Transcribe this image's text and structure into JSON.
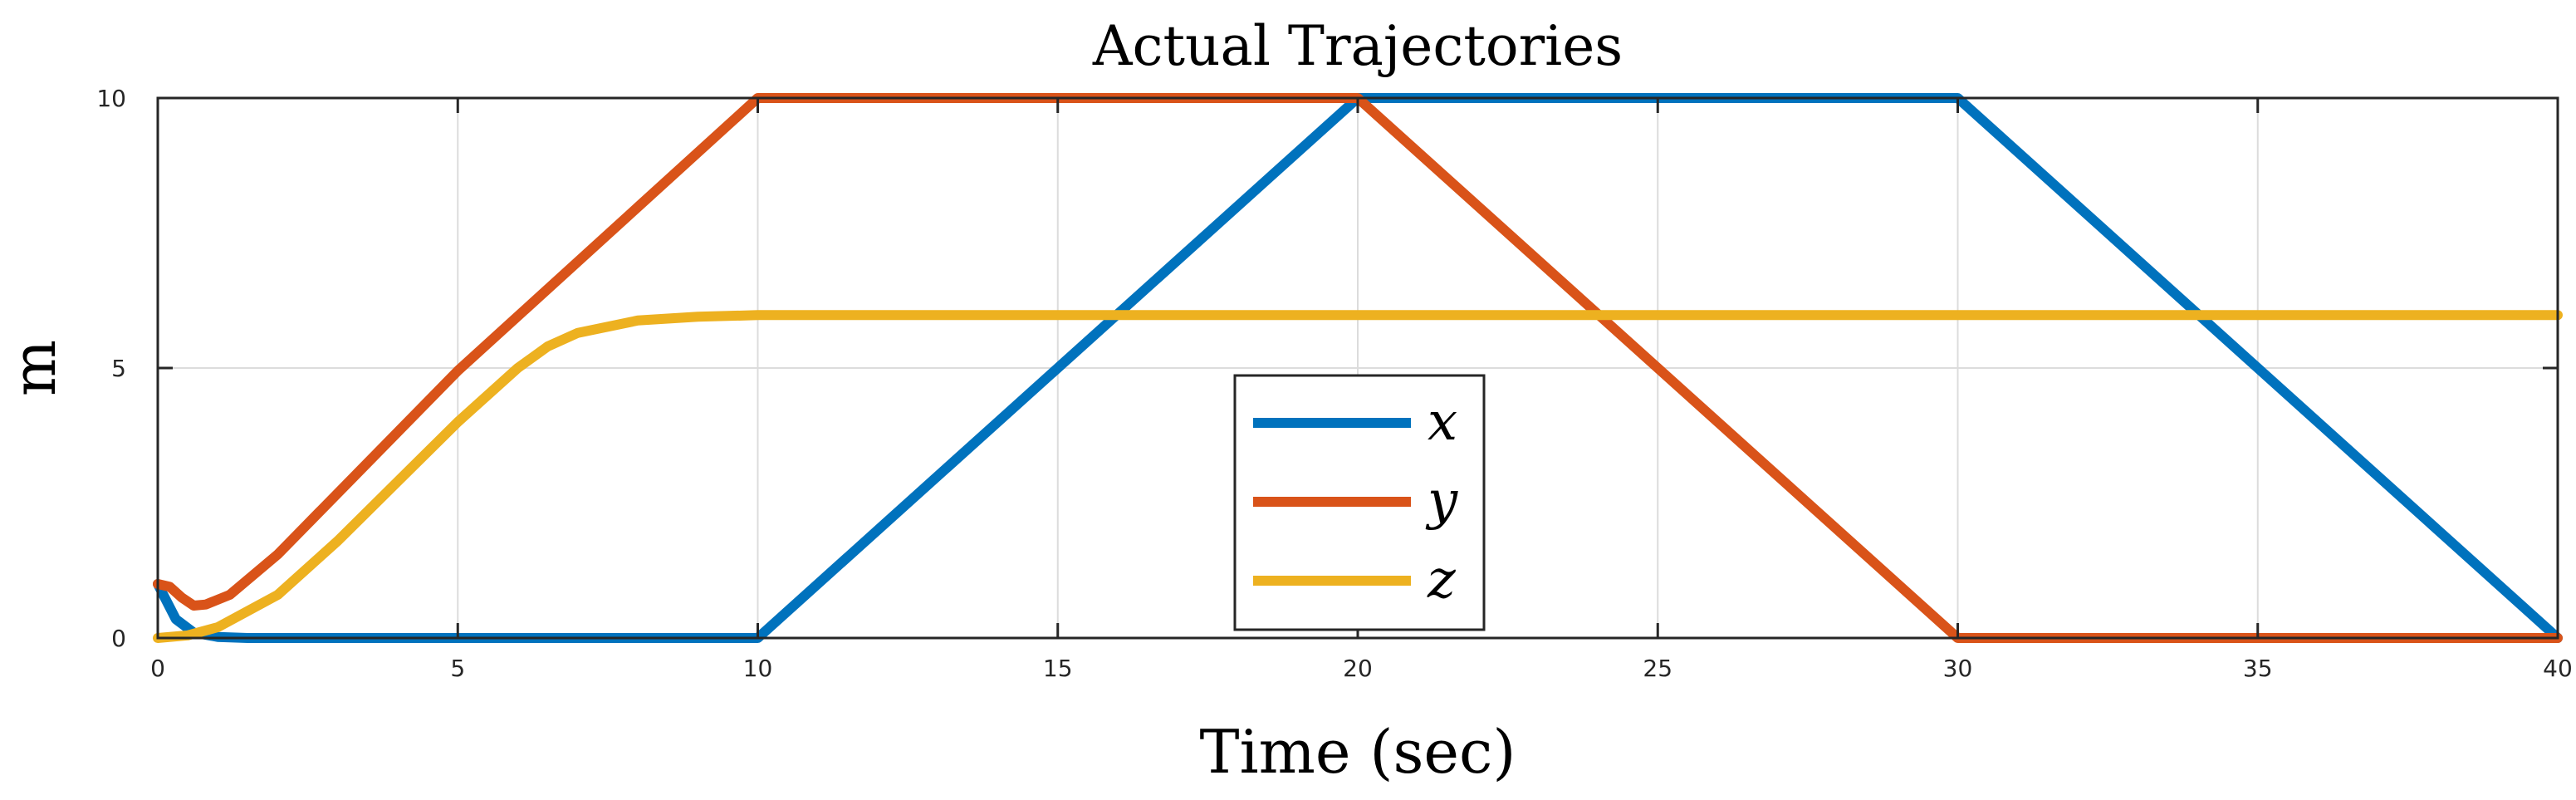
{
  "chart_data": {
    "type": "line",
    "title": "Actual Trajectories",
    "xlabel": "Time (sec)",
    "ylabel": "m",
    "xlim": [
      0,
      40
    ],
    "ylim": [
      0,
      10
    ],
    "x_ticks": [
      "0",
      "5",
      "10",
      "15",
      "20",
      "25",
      "30",
      "35",
      "40"
    ],
    "y_ticks": [
      "0",
      "5",
      "10"
    ],
    "grid": true,
    "legend_position": "center",
    "series": [
      {
        "name": "x",
        "color": "#0072BD",
        "points": [
          [
            0,
            1.0
          ],
          [
            0.3,
            0.35
          ],
          [
            0.6,
            0.1
          ],
          [
            1.0,
            0.02
          ],
          [
            1.5,
            0.0
          ],
          [
            10,
            0.0
          ],
          [
            20,
            10.0
          ],
          [
            30,
            10.0
          ],
          [
            40,
            0.0
          ]
        ]
      },
      {
        "name": "y",
        "color": "#D95319",
        "points": [
          [
            0,
            1.0
          ],
          [
            0.2,
            0.95
          ],
          [
            0.4,
            0.75
          ],
          [
            0.6,
            0.6
          ],
          [
            0.8,
            0.62
          ],
          [
            1.2,
            0.8
          ],
          [
            2,
            1.55
          ],
          [
            5,
            4.95
          ],
          [
            10,
            10.0
          ],
          [
            20,
            10.0
          ],
          [
            30,
            0.0
          ],
          [
            40,
            0.0
          ]
        ]
      },
      {
        "name": "z",
        "color": "#EDB120",
        "points": [
          [
            0,
            0.0
          ],
          [
            0.5,
            0.05
          ],
          [
            1,
            0.2
          ],
          [
            2,
            0.8
          ],
          [
            3,
            1.8
          ],
          [
            4,
            2.9
          ],
          [
            5,
            4.0
          ],
          [
            6,
            5.0
          ],
          [
            6.5,
            5.4
          ],
          [
            7,
            5.65
          ],
          [
            8,
            5.88
          ],
          [
            9,
            5.95
          ],
          [
            10,
            5.98
          ],
          [
            20,
            5.98
          ],
          [
            40,
            5.98
          ]
        ]
      }
    ]
  }
}
